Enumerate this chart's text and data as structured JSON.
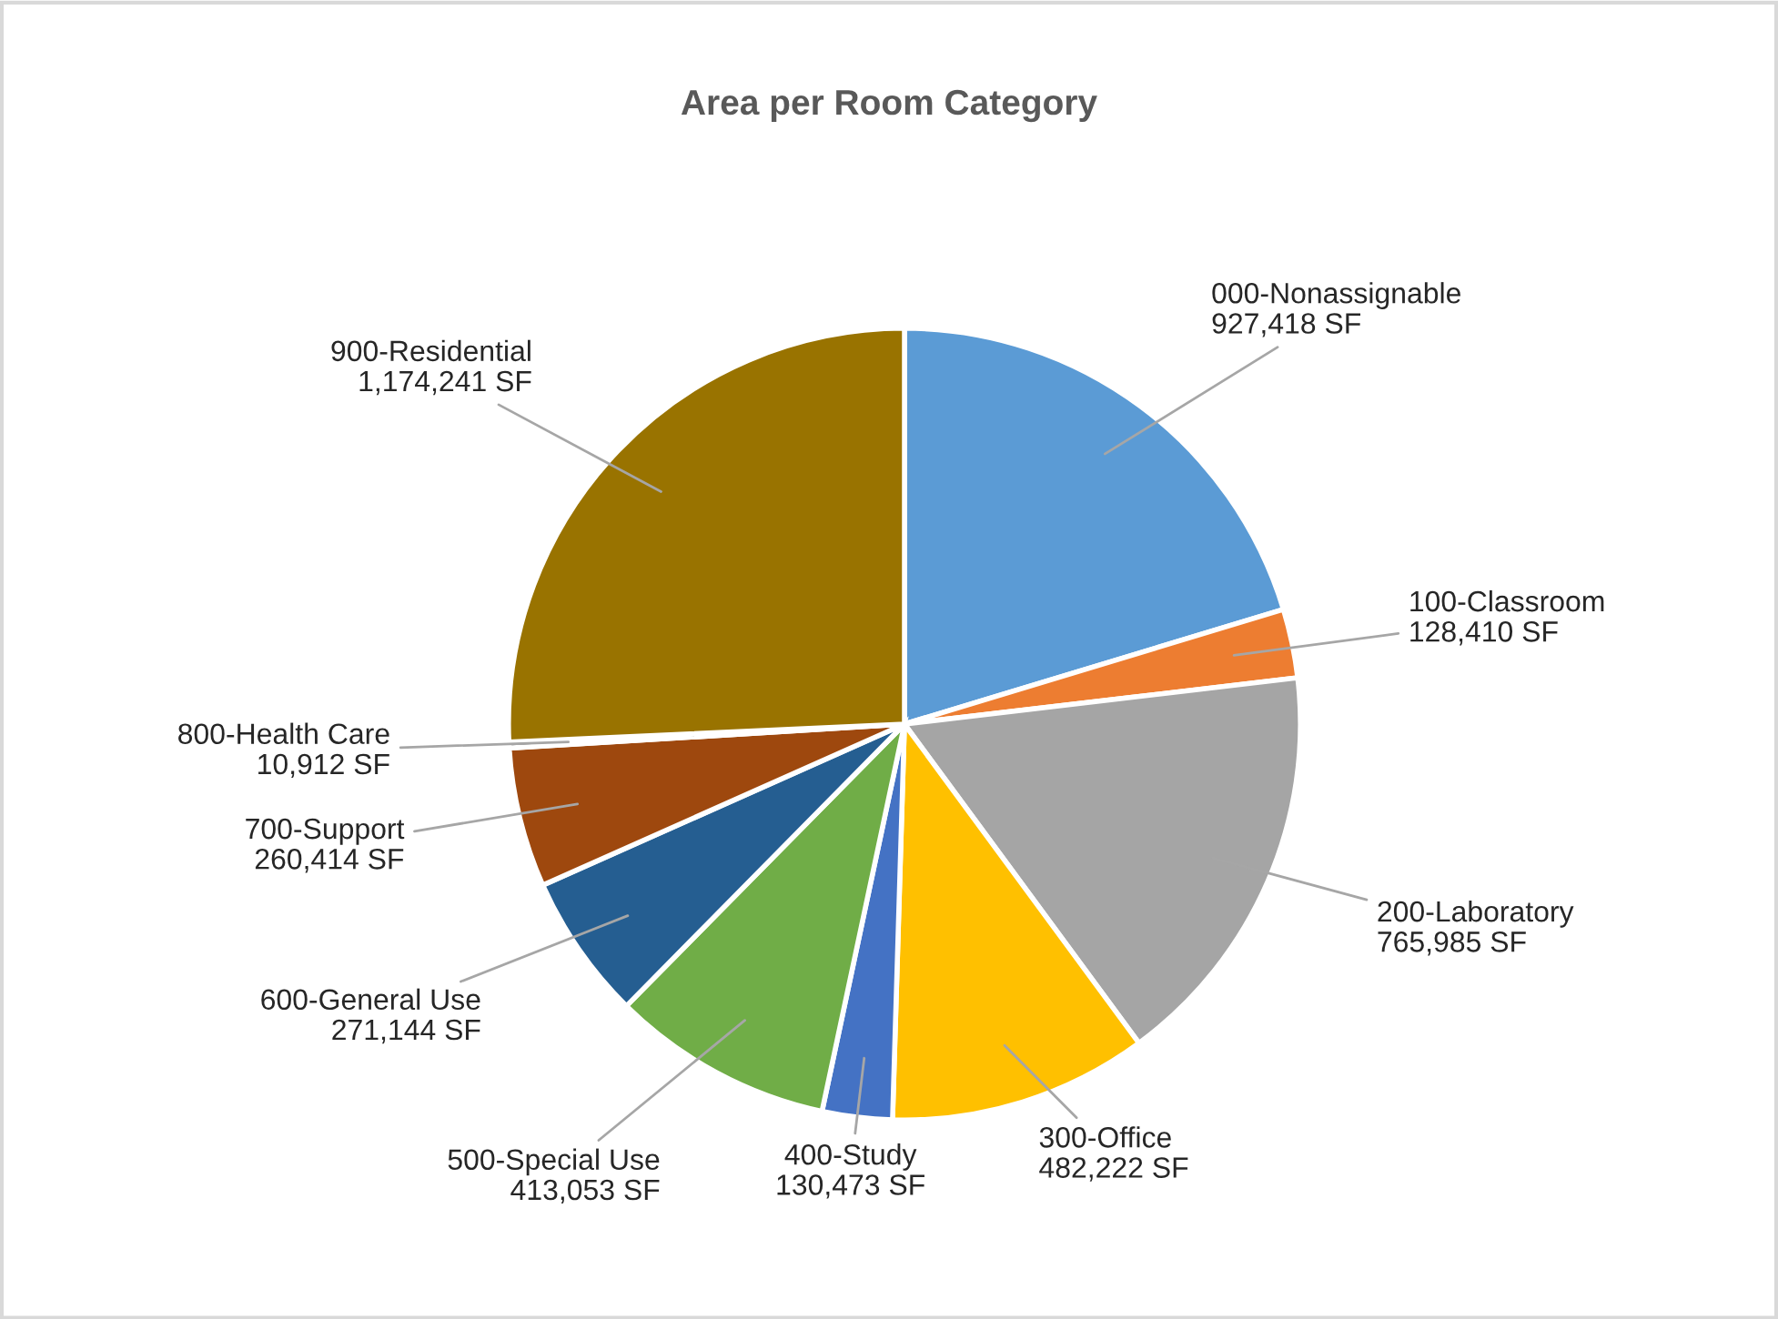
{
  "chart_data": {
    "type": "pie",
    "title": "Area per Room Category",
    "categories": [
      "000-Nonassignable",
      "100-Classroom",
      "200-Laboratory",
      "300-Office",
      "400-Study",
      "500-Special Use",
      "600-General Use",
      "700-Support",
      "800-Health Care",
      "900-Residential"
    ],
    "values": [
      927418,
      128410,
      765985,
      482222,
      130473,
      413053,
      271144,
      260414,
      10912,
      1174241
    ],
    "value_labels": [
      "927,418 SF",
      "128,410 SF",
      "765,985 SF",
      "482,222 SF",
      "130,473 SF",
      "413,053 SF",
      "271,144 SF",
      "260,414 SF",
      "10,912 SF",
      "1,174,241 SF"
    ],
    "colors": [
      "#5b9bd5",
      "#ed7d31",
      "#a5a5a5",
      "#ffc000",
      "#4472c4",
      "#70ad47",
      "#255e91",
      "#9e480e",
      "#636363",
      "#997300"
    ],
    "legend": false
  }
}
